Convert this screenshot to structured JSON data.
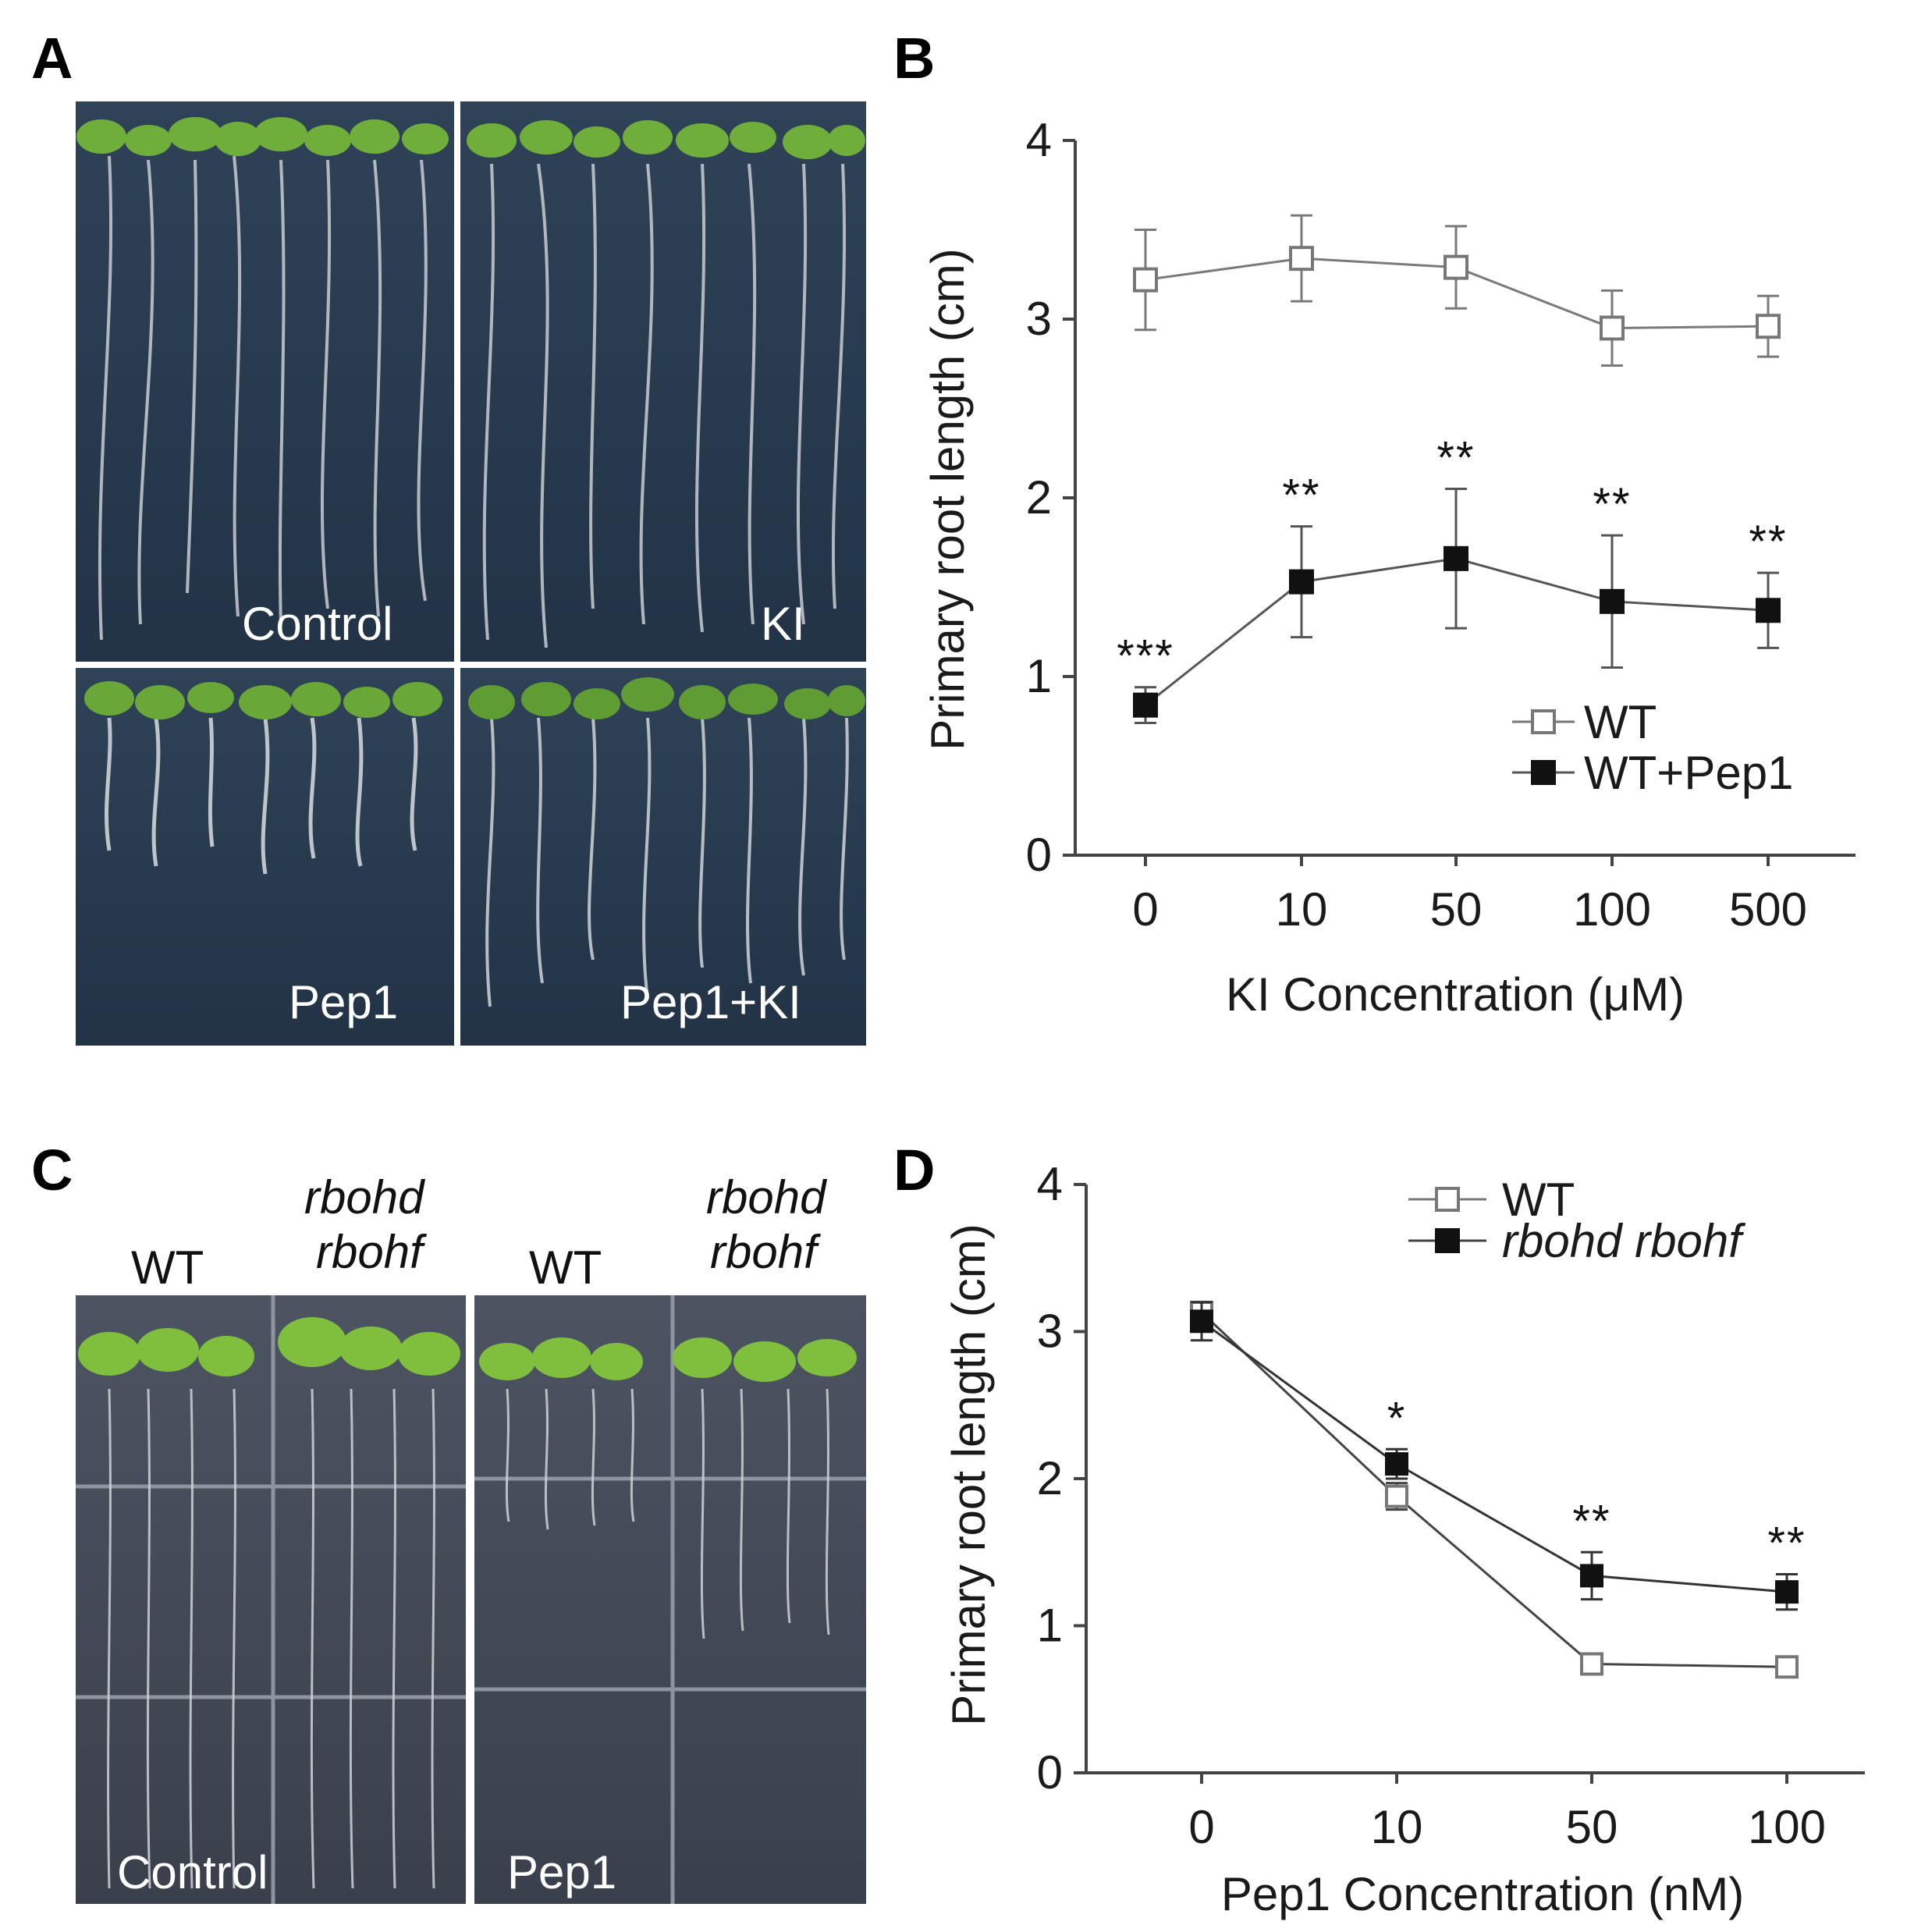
{
  "panel_labels": {
    "a": "A",
    "b": "B",
    "c": "C",
    "d": "D"
  },
  "photo_a": {
    "labels": {
      "control": "Control",
      "ki": "KI",
      "pep1": "Pep1",
      "pep1_ki": "Pep1+KI"
    }
  },
  "photo_c": {
    "col_wt_1": "WT",
    "col_mut_1_line1": "rbohd",
    "col_mut_1_line2": "rbohf",
    "col_wt_2": "WT",
    "col_mut_2_line1": "rbohd",
    "col_mut_2_line2": "rbohf",
    "label_control": "Control",
    "label_pep1": "Pep1"
  },
  "chart_data": [
    {
      "id": "B",
      "type": "line",
      "xlabel": "KI Concentration (μM)",
      "ylabel": "Primary root length (cm)",
      "categories": [
        "0",
        "10",
        "50",
        "100",
        "500"
      ],
      "ylim": [
        0,
        4
      ],
      "yticks": [
        "0",
        "1",
        "2",
        "3",
        "4"
      ],
      "legend_position": "lower-right",
      "series": [
        {
          "name": "WT",
          "marker": "open-square",
          "values": [
            3.22,
            3.34,
            3.29,
            2.95,
            2.96
          ],
          "errors": [
            0.28,
            0.24,
            0.23,
            0.21,
            0.17
          ],
          "stars": [
            "",
            "",
            "",
            "",
            ""
          ]
        },
        {
          "name": "WT+Pep1",
          "marker": "filled-square",
          "values": [
            0.84,
            1.53,
            1.66,
            1.42,
            1.37
          ],
          "errors": [
            0.1,
            0.31,
            0.39,
            0.37,
            0.21
          ],
          "stars": [
            "***",
            "**",
            "**",
            "**",
            "**"
          ]
        }
      ]
    },
    {
      "id": "D",
      "type": "line",
      "xlabel": "Pep1 Concentration (nM)",
      "ylabel": "Primary root length (cm)",
      "categories": [
        "0",
        "10",
        "50",
        "100"
      ],
      "ylim": [
        0,
        4
      ],
      "yticks": [
        "0",
        "1",
        "2",
        "3",
        "4"
      ],
      "legend_position": "top-right",
      "series": [
        {
          "name": "WT",
          "marker": "open-square",
          "values": [
            3.13,
            1.88,
            0.74,
            0.72
          ],
          "errors": [
            0.07,
            0.09,
            0.07,
            0.07
          ],
          "stars": [
            "",
            "",
            "",
            ""
          ]
        },
        {
          "name": "rbohd rbohf",
          "marker": "filled-square",
          "italic": true,
          "values": [
            3.07,
            2.1,
            1.34,
            1.23
          ],
          "errors": [
            0.13,
            0.1,
            0.16,
            0.12
          ],
          "stars": [
            "",
            "*",
            "**",
            "**"
          ]
        }
      ]
    }
  ]
}
